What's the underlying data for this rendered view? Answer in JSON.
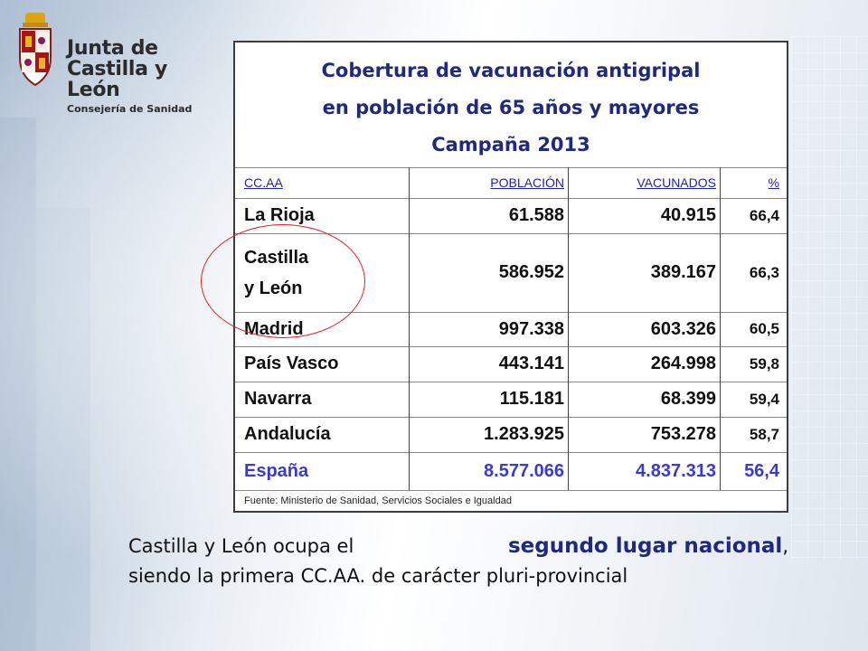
{
  "logo": {
    "line1": "Junta de",
    "line2": "Castilla y León",
    "line3": "Consejería de Sanidad",
    "icon": "coat-of-arms"
  },
  "table": {
    "title_line1": "Cobertura de vacunación antigripal",
    "title_line2": "en población de 65 años y mayores",
    "title_line3": "Campaña 2013",
    "headers": [
      "CC.AA",
      "POBLACIÓN",
      "VACUNADOS",
      "%"
    ],
    "rows": [
      {
        "region_line1": "La Rioja",
        "region_line2": "",
        "poblacion": "61.588",
        "vacunados": "40.915",
        "pct": "66,4"
      },
      {
        "region_line1": "Castilla",
        "region_line2": "y León",
        "poblacion": "586.952",
        "vacunados": "389.167",
        "pct": "66,3"
      },
      {
        "region_line1": "Madrid",
        "region_line2": "",
        "poblacion": "997.338",
        "vacunados": "603.326",
        "pct": "60,5"
      },
      {
        "region_line1": "País Vasco",
        "region_line2": "",
        "poblacion": "443.141",
        "vacunados": "264.998",
        "pct": "59,8"
      },
      {
        "region_line1": "Navarra",
        "region_line2": "",
        "poblacion": "115.181",
        "vacunados": "68.399",
        "pct": "59,4"
      },
      {
        "region_line1": "Andalucía",
        "region_line2": "",
        "poblacion": "1.283.925",
        "vacunados": "753.278",
        "pct": "58,7"
      }
    ],
    "total": {
      "region": "España",
      "poblacion": "8.577.066",
      "vacunados": "4.837.313",
      "pct": "56,4"
    },
    "source": "Fuente: Ministerio de Sanidad, Servicios Sociales e Igualdad"
  },
  "caption": {
    "line1_pre": "Castilla y León ocupa el",
    "line1_bold": "segundo lugar nacional",
    "line1_post": ",",
    "line2": "siendo la primera CC.AA. de carácter pluri-provincial"
  },
  "colors": {
    "title": "#1f2a7a",
    "header": "#2222aa",
    "total": "#3a3ad0",
    "highlight": "#e32020"
  }
}
